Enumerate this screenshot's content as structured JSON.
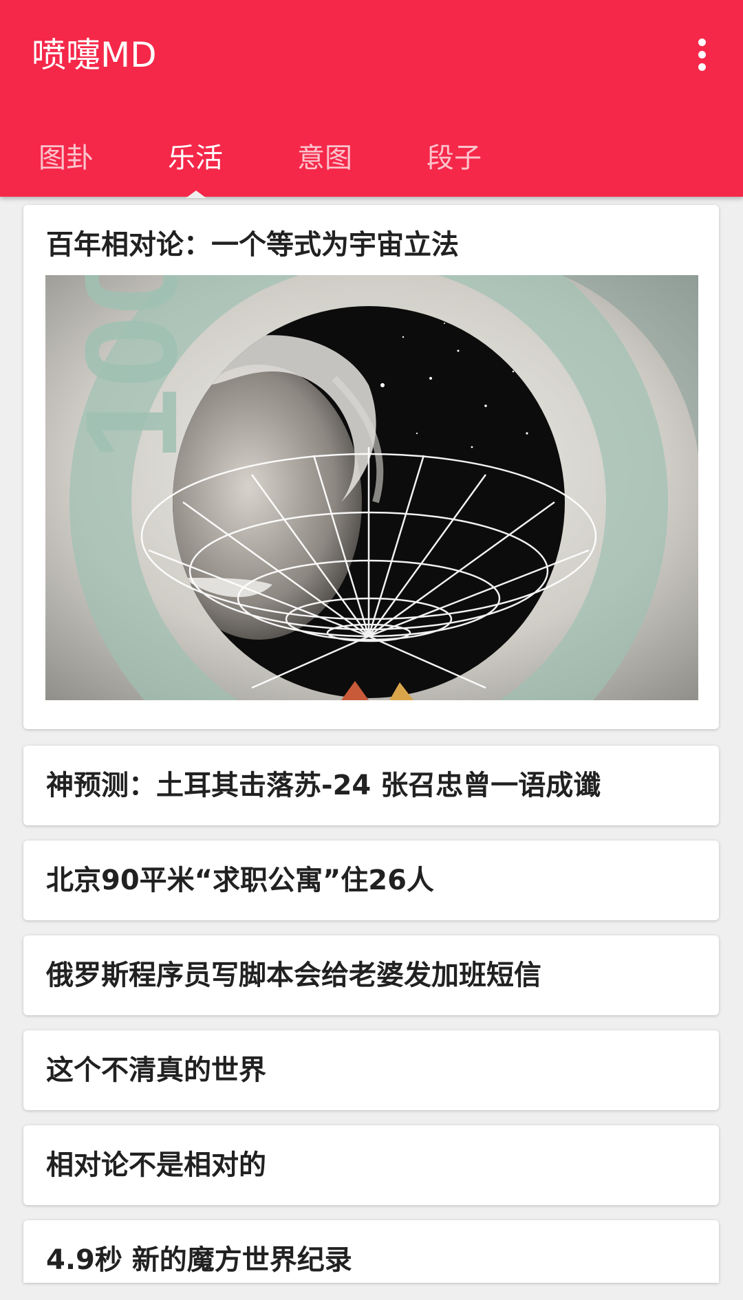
{
  "app": {
    "title": "喷嚏MD",
    "overflow_icon": "more-vert-icon"
  },
  "colors": {
    "primary": "#f5284a",
    "background": "#efefef",
    "card": "#ffffff",
    "title_text": "#212121"
  },
  "tabs": [
    {
      "label": "图卦",
      "active": false
    },
    {
      "label": "乐活",
      "active": true
    },
    {
      "label": "意图",
      "active": false
    },
    {
      "label": "段子",
      "active": false
    }
  ],
  "articles": [
    {
      "title": "百年相对论：一个等式为宇宙立法",
      "has_image": true,
      "image": "einstein-spacetime-illustration"
    },
    {
      "title": "神预测：土耳其击落苏-24 张召忠曾一语成谶"
    },
    {
      "title": "北京90平米“求职公寓”住26人"
    },
    {
      "title": "俄罗斯程序员写脚本会给老婆发加班短信"
    },
    {
      "title": "这个不清真的世界"
    },
    {
      "title": "相对论不是相对的"
    },
    {
      "title": "4.9秒 新的魔方世界纪录"
    }
  ]
}
